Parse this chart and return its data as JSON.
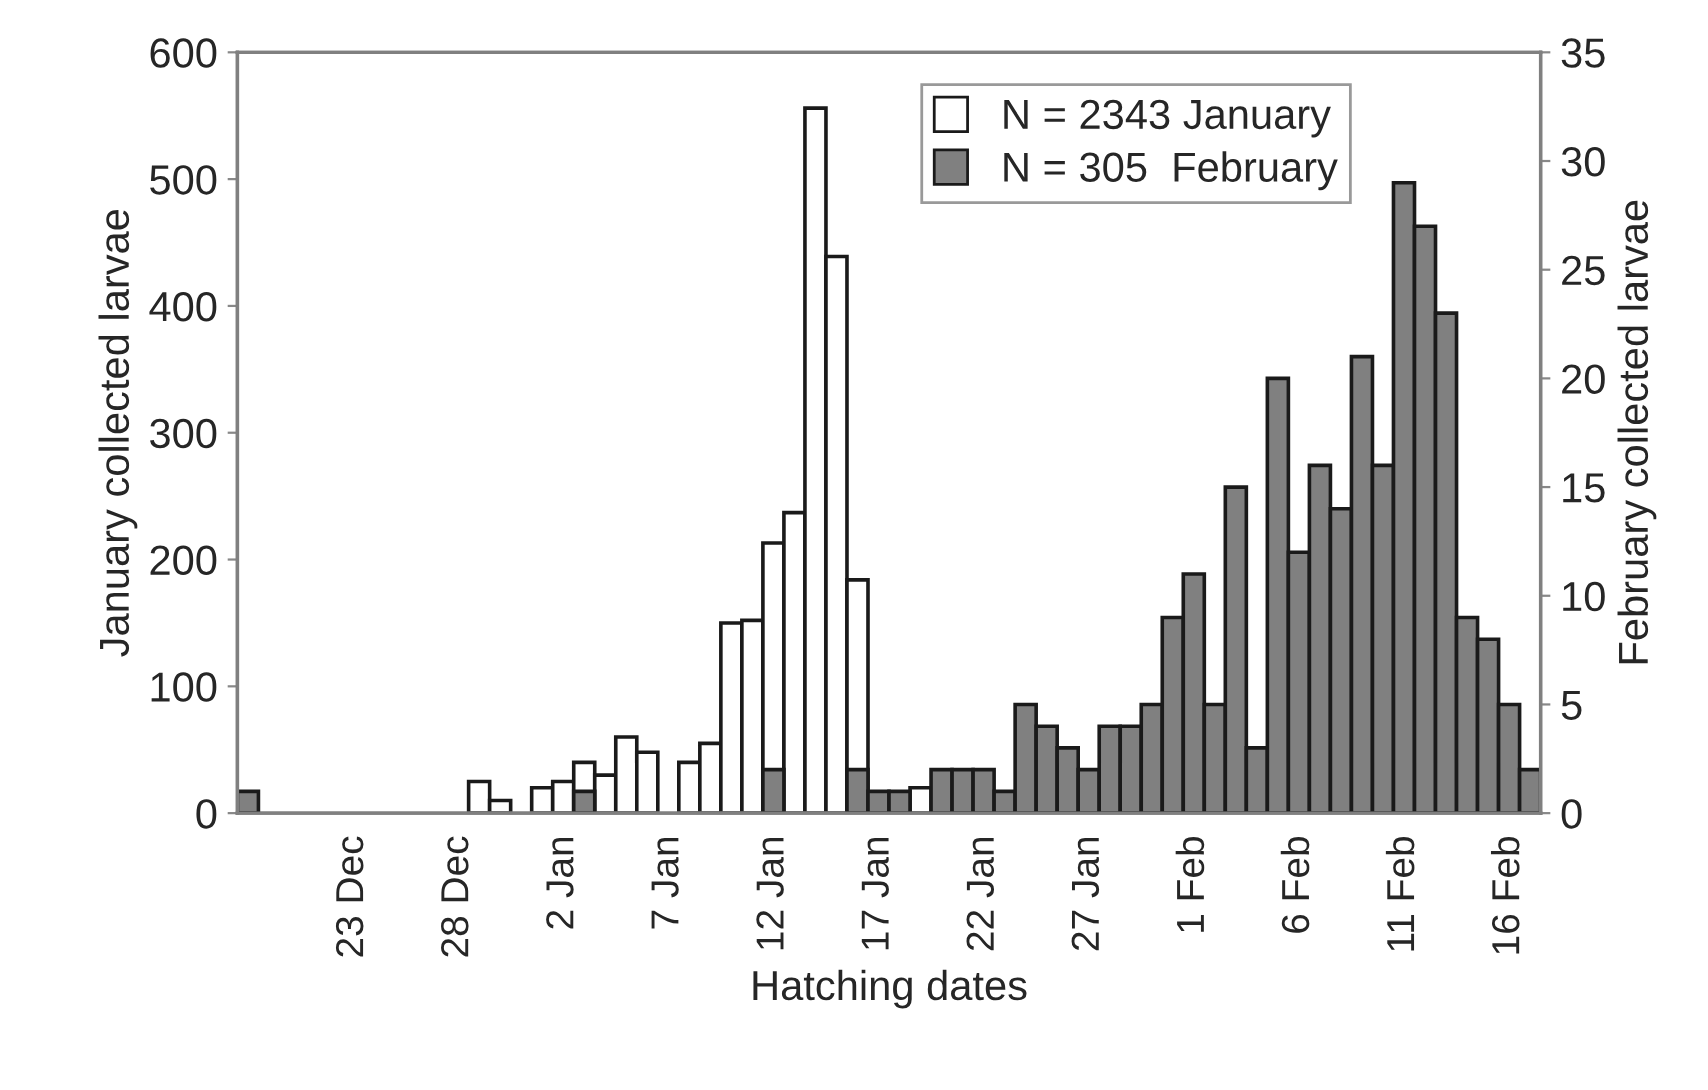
{
  "chart_data": {
    "type": "bar",
    "xlabel": "Hatching dates",
    "ylabel": "January collected larvae",
    "y2label": "February collected larvae",
    "categories": [
      null,
      null,
      null,
      null,
      null,
      "23 Dec",
      null,
      null,
      null,
      null,
      "28 Dec",
      null,
      null,
      null,
      null,
      "2 Jan",
      null,
      null,
      null,
      null,
      "7 Jan",
      null,
      null,
      null,
      null,
      "12 Jan",
      null,
      null,
      null,
      null,
      "17 Jan",
      null,
      null,
      null,
      null,
      "22 Jan",
      null,
      null,
      null,
      null,
      "27 Jan",
      null,
      null,
      null,
      null,
      "1 Feb",
      null,
      null,
      null,
      null,
      "6 Feb",
      null,
      null,
      null,
      null,
      "11 Feb",
      null,
      null,
      null,
      null,
      "16 Feb",
      null
    ],
    "series": [
      {
        "name": "N = 2343 January",
        "color": "#ffffff",
        "values": [
          null,
          null,
          null,
          null,
          null,
          null,
          null,
          null,
          null,
          null,
          null,
          25,
          10,
          null,
          20,
          25,
          40,
          30,
          60,
          48,
          null,
          40,
          55,
          150,
          152,
          213,
          237,
          556,
          439,
          184,
          null,
          null,
          20,
          null,
          null,
          null,
          null,
          null,
          null,
          null,
          null,
          null,
          null,
          null,
          null,
          null,
          null,
          null,
          null,
          null,
          null,
          null,
          null,
          null,
          null,
          null,
          null,
          null,
          null,
          null,
          null,
          null
        ]
      },
      {
        "name": "N = 305  February",
        "color": "#808080",
        "axis": "y2",
        "values": [
          1,
          null,
          null,
          null,
          null,
          null,
          null,
          null,
          null,
          null,
          null,
          null,
          null,
          null,
          null,
          null,
          1,
          null,
          null,
          null,
          null,
          null,
          null,
          null,
          null,
          2,
          null,
          null,
          null,
          2,
          1,
          1,
          null,
          2,
          2,
          2,
          1,
          5,
          4,
          3,
          2,
          4,
          4,
          5,
          9,
          11,
          5,
          15,
          3,
          20,
          12,
          16,
          14,
          21,
          16,
          29,
          27,
          23,
          9,
          8,
          5,
          2
        ]
      }
    ],
    "ylim": [
      0,
      600
    ],
    "yticks": [
      0,
      100,
      200,
      300,
      400,
      500,
      600
    ],
    "y2lim": [
      0,
      35
    ],
    "y2ticks": [
      0,
      5,
      10,
      15,
      20,
      25,
      30,
      35
    ],
    "grid": false,
    "legend": "top right"
  }
}
